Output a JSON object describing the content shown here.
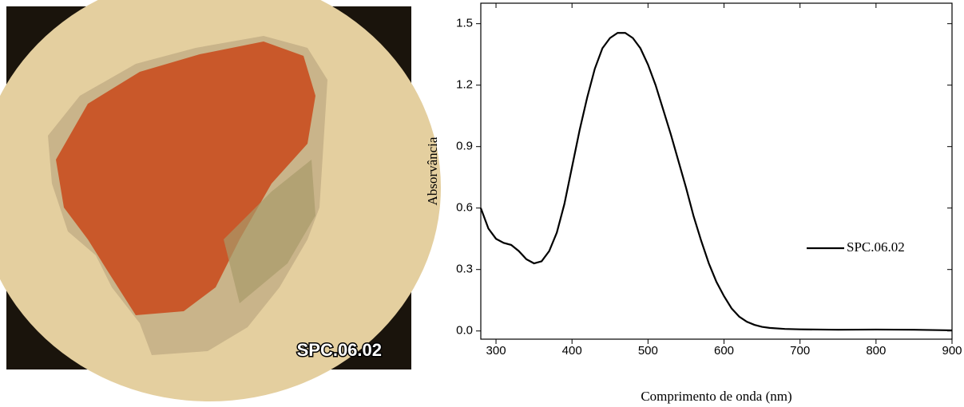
{
  "photo": {
    "label": "SPC.06.02"
  },
  "chart_data": {
    "type": "line",
    "xlabel": "Comprimento de onda (nm)",
    "ylabel": "Absorvância",
    "x": [
      280,
      290,
      300,
      310,
      320,
      330,
      340,
      350,
      360,
      370,
      380,
      390,
      400,
      410,
      420,
      430,
      440,
      450,
      460,
      470,
      480,
      490,
      500,
      510,
      520,
      530,
      540,
      550,
      560,
      570,
      580,
      590,
      600,
      610,
      620,
      630,
      640,
      650,
      660,
      680,
      700,
      750,
      800,
      850,
      900
    ],
    "series": [
      {
        "name": "SPC.06.02",
        "color": "#000000",
        "values": [
          0.6,
          0.5,
          0.45,
          0.43,
          0.42,
          0.39,
          0.35,
          0.33,
          0.34,
          0.39,
          0.48,
          0.62,
          0.8,
          0.98,
          1.14,
          1.28,
          1.38,
          1.43,
          1.455,
          1.455,
          1.43,
          1.38,
          1.3,
          1.2,
          1.08,
          0.96,
          0.83,
          0.7,
          0.56,
          0.44,
          0.33,
          0.24,
          0.17,
          0.11,
          0.07,
          0.045,
          0.03,
          0.02,
          0.015,
          0.01,
          0.008,
          0.006,
          0.007,
          0.006,
          0.003
        ]
      }
    ],
    "xlim": [
      280,
      900
    ],
    "xticks": [
      300,
      400,
      500,
      600,
      700,
      800,
      900
    ],
    "ylim": [
      -0.04,
      1.6
    ],
    "yticks": [
      {
        "value": 0,
        "label": "0.0"
      },
      0.3,
      0.6,
      0.9,
      1.2,
      1.5
    ],
    "legend": "right"
  }
}
